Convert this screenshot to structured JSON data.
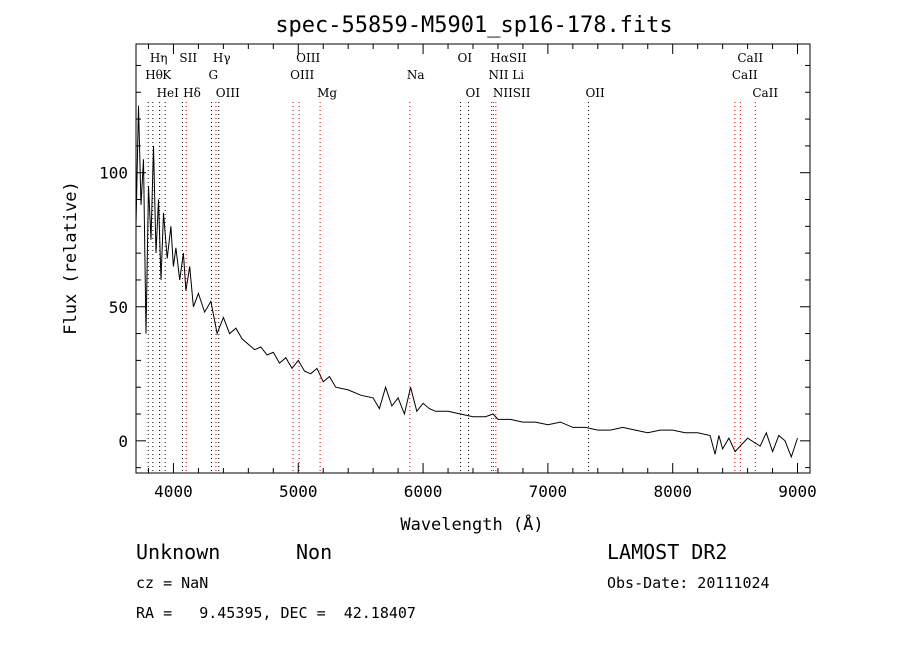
{
  "chart_data": {
    "type": "line",
    "title": "spec-55859-M5901_sp16-178.fits",
    "xlabel": "Wavelength (Å)",
    "ylabel": "Flux (relative)",
    "xlim": [
      3700,
      9100
    ],
    "ylim": [
      -12,
      148
    ],
    "xticks": [
      4000,
      5000,
      6000,
      7000,
      8000,
      9000
    ],
    "yticks": [
      0,
      50,
      100
    ],
    "grid": false,
    "series": [
      {
        "x": [
          3700,
          3720,
          3740,
          3760,
          3780,
          3800,
          3820,
          3840,
          3860,
          3880,
          3900,
          3920,
          3950,
          3980,
          4000,
          4020,
          4050,
          4080,
          4100,
          4130,
          4160,
          4200,
          4250,
          4300,
          4350,
          4400,
          4450,
          4500,
          4550,
          4600,
          4650,
          4700,
          4750,
          4800,
          4850,
          4900,
          4950,
          5000,
          5050,
          5100,
          5150,
          5200,
          5250,
          5300,
          5400,
          5500,
          5600,
          5650,
          5700,
          5750,
          5800,
          5850,
          5900,
          5950,
          6000,
          6050,
          6100,
          6200,
          6300,
          6400,
          6500,
          6560,
          6600,
          6700,
          6800,
          6900,
          7000,
          7100,
          7200,
          7300,
          7400,
          7500,
          7600,
          7700,
          7800,
          7900,
          8000,
          8100,
          8200,
          8300,
          8340,
          8370,
          8400,
          8450,
          8500,
          8600,
          8700,
          8750,
          8800,
          8850,
          8900,
          8950,
          9000
        ],
        "y": [
          80,
          125,
          88,
          105,
          40,
          95,
          75,
          110,
          70,
          90,
          60,
          85,
          68,
          80,
          65,
          72,
          60,
          70,
          56,
          65,
          50,
          55,
          48,
          52,
          40,
          46,
          40,
          42,
          38,
          36,
          34,
          35,
          32,
          33,
          29,
          31,
          27,
          30,
          26,
          25,
          27,
          22,
          24,
          20,
          19,
          17,
          16,
          12,
          20,
          13,
          16,
          10,
          20,
          11,
          14,
          12,
          11,
          11,
          10,
          9,
          9,
          10,
          8,
          8,
          7,
          7,
          6,
          7,
          5,
          5,
          4,
          4,
          5,
          4,
          3,
          4,
          4,
          3,
          3,
          2,
          -5,
          2,
          -3,
          1,
          -4,
          1,
          -2,
          3,
          -4,
          2,
          0,
          -6,
          1
        ]
      }
    ],
    "lines": [
      {
        "name": "Hη",
        "x": 3835,
        "color": "#000000",
        "row": 0
      },
      {
        "name": "Hθ",
        "x": 3798,
        "color": "#000000",
        "row": 1
      },
      {
        "name": "K",
        "x": 3934,
        "color": "#000000",
        "row": 1
      },
      {
        "name": "HeI",
        "x": 3889,
        "color": "#000000",
        "row": 2
      },
      {
        "name": "SII",
        "x": 4072,
        "color": "#000000",
        "row": 0
      },
      {
        "name": "Hδ",
        "x": 4102,
        "color": "#cc0000",
        "row": 2
      },
      {
        "name": "Hγ",
        "x": 4340,
        "color": "#cc0000",
        "row": 0
      },
      {
        "name": "G",
        "x": 4305,
        "color": "#000000",
        "row": 1
      },
      {
        "name": "OIII",
        "x": 4363,
        "color": "#000000",
        "row": 2
      },
      {
        "name": "OIII",
        "x": 5007,
        "color": "#cc0000",
        "row": 0
      },
      {
        "name": "OIII",
        "x": 4959,
        "color": "#cc0000",
        "row": 1
      },
      {
        "name": "Mg",
        "x": 5175,
        "color": "#cc0000",
        "row": 2
      },
      {
        "name": "Na",
        "x": 5894,
        "color": "#cc0000",
        "row": 1
      },
      {
        "name": "OI",
        "x": 6300,
        "color": "#000000",
        "row": 0
      },
      {
        "name": "OI",
        "x": 6364,
        "color": "#000000",
        "row": 2
      },
      {
        "name": "HαSII",
        "x": 6563,
        "color": "#cc0000",
        "row": 0
      },
      {
        "name": "NII Li",
        "x": 6548,
        "color": "#cc0000",
        "row": 1
      },
      {
        "name": "NIISII",
        "x": 6583,
        "color": "#cc0000",
        "row": 2
      },
      {
        "name": "OII",
        "x": 7325,
        "color": "#000000",
        "row": 2
      },
      {
        "name": "CaII",
        "x": 8542,
        "color": "#cc0000",
        "row": 0
      },
      {
        "name": "CaII",
        "x": 8498,
        "color": "#cc0000",
        "row": 1
      },
      {
        "name": "CaII",
        "x": 8662,
        "color": "#cc0000",
        "row": 2
      }
    ]
  },
  "info": {
    "class": "Unknown",
    "subclass": "Non",
    "survey": "LAMOST DR2",
    "cz": "cz = NaN",
    "obs_date": "Obs-Date: 20111024",
    "ra_dec": "RA =   9.45395, DEC =  42.18407"
  }
}
